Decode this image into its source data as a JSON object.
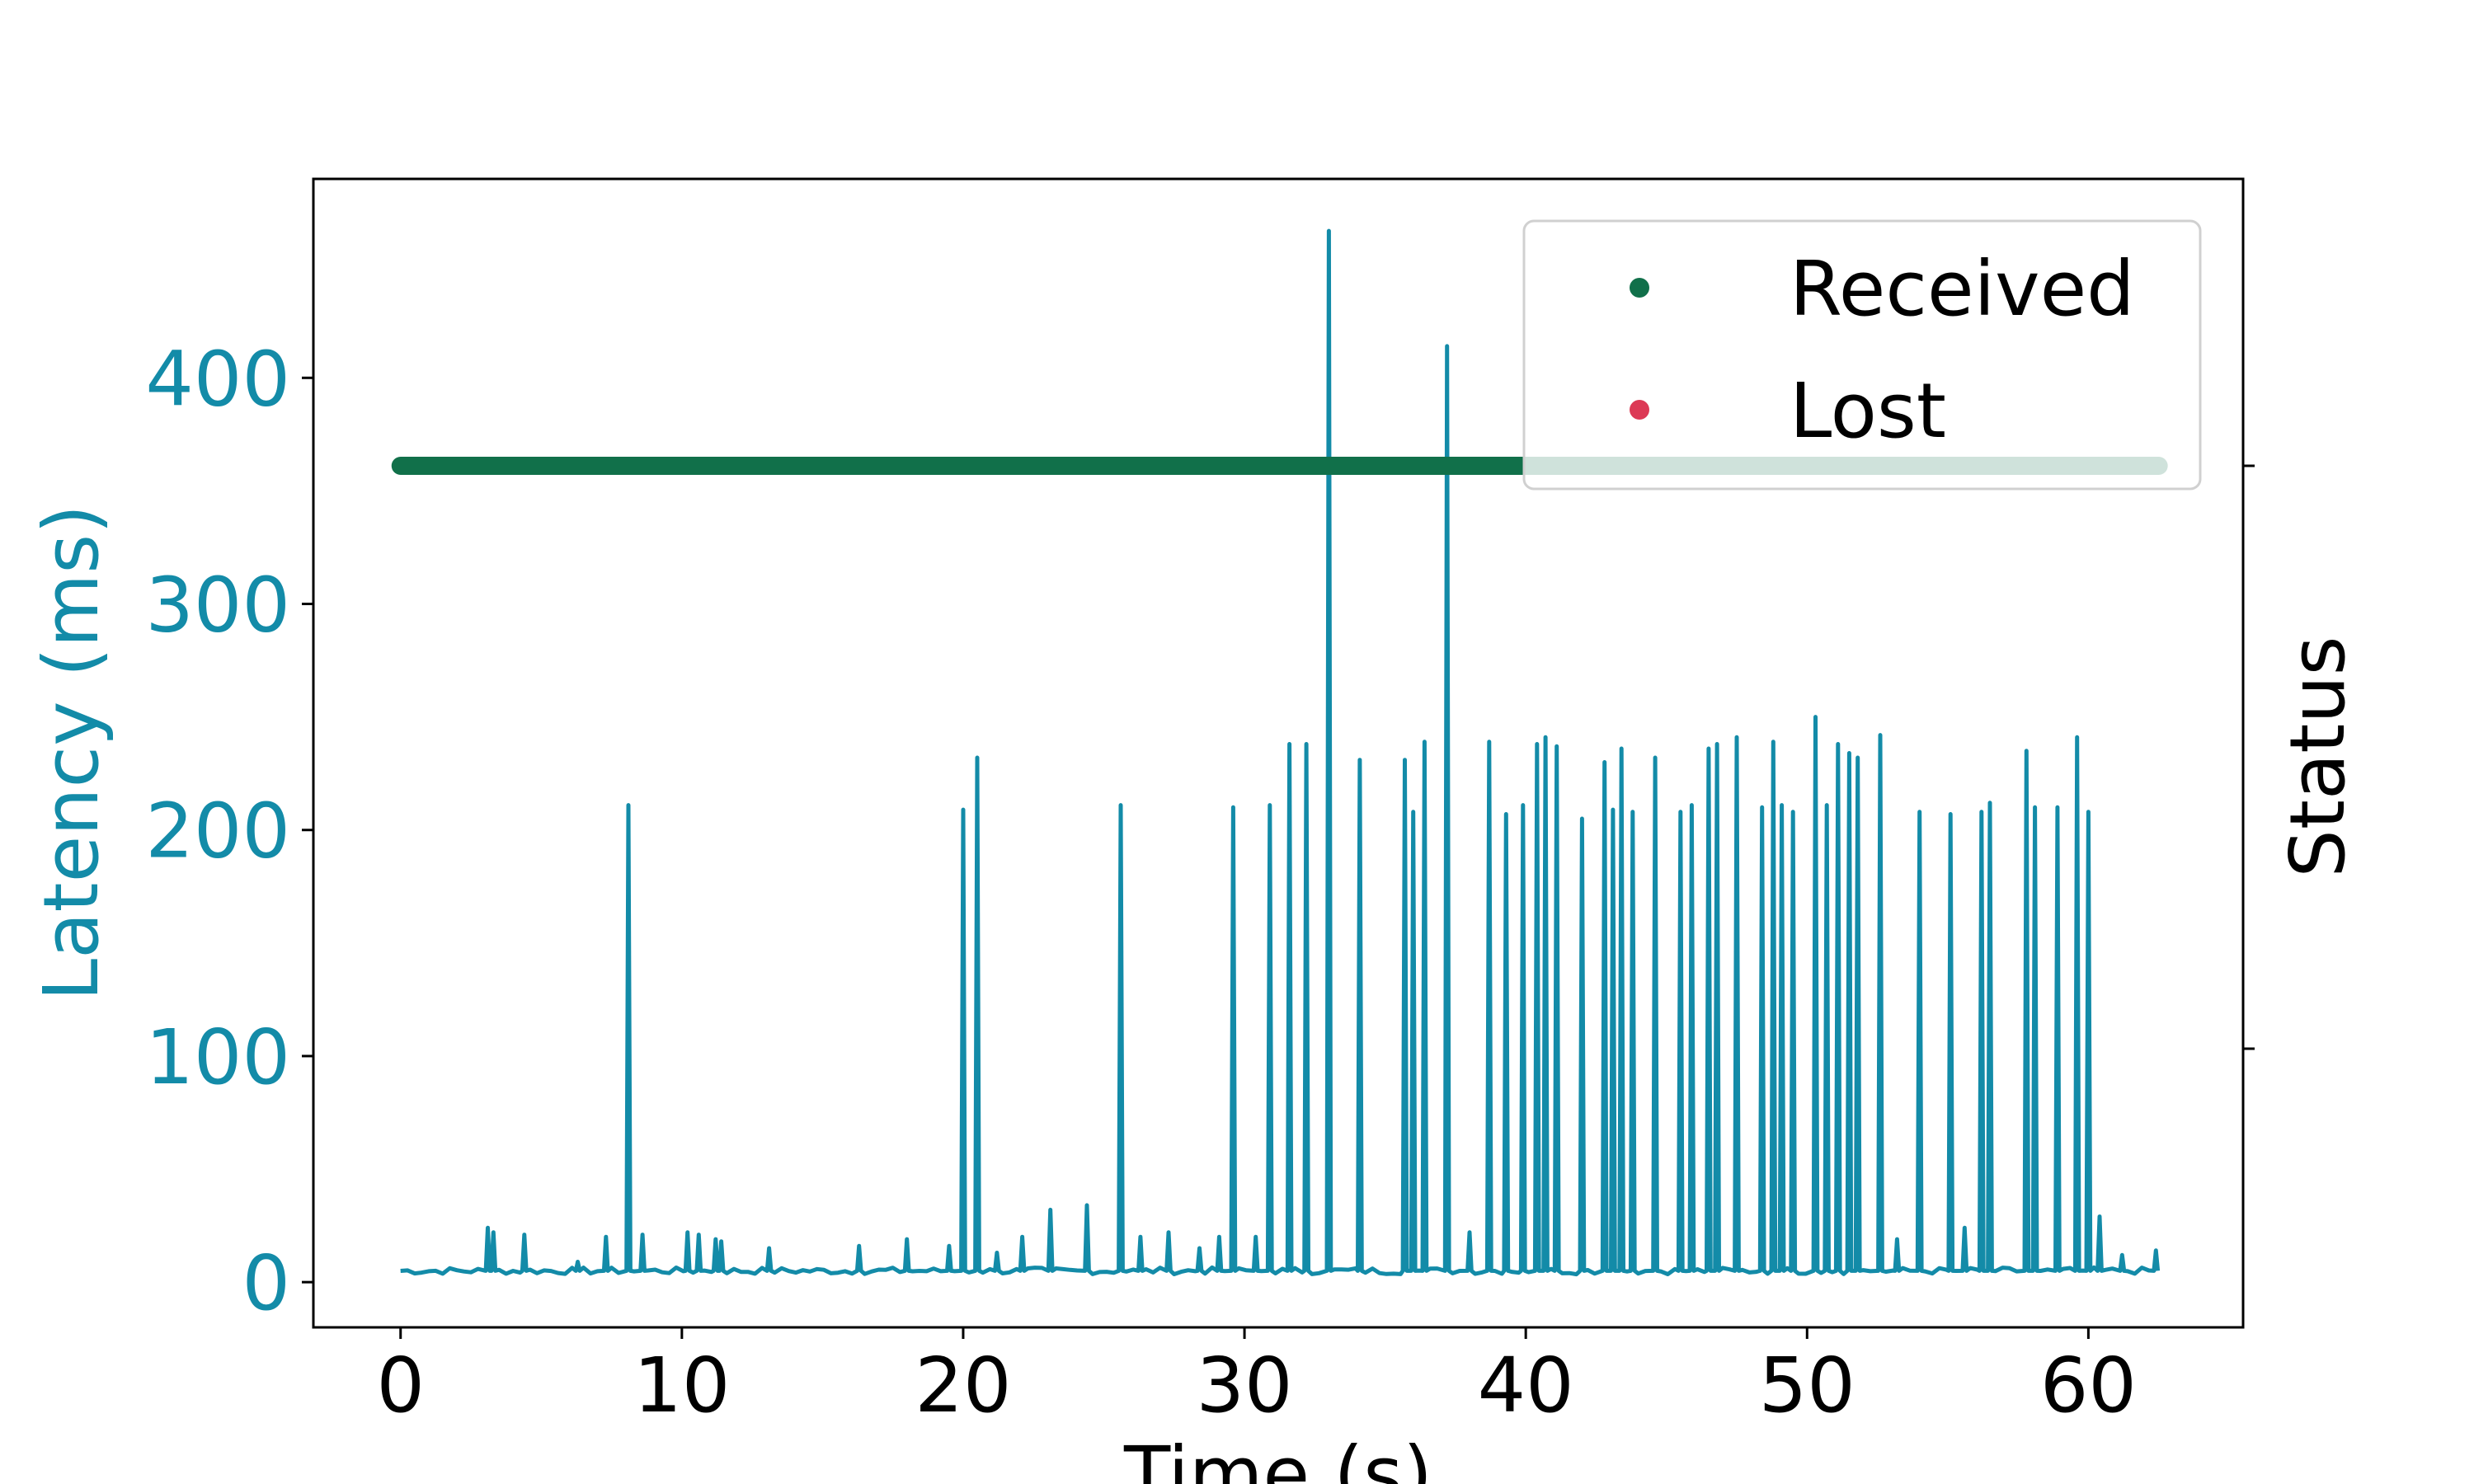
{
  "chart_data": {
    "type": "line",
    "title": "",
    "xlabel": "Time (s)",
    "ylabel": "Latency (ms)",
    "y2label": "Status",
    "xlim": [
      -3.1,
      65.5
    ],
    "ylim": [
      -20,
      488
    ],
    "x_ticks": [
      0,
      10,
      20,
      30,
      40,
      50,
      60
    ],
    "y_ticks": [
      0,
      100,
      200,
      300,
      400
    ],
    "grid": false,
    "legend_placement": "top-right",
    "colors": {
      "latency": "#138ba8",
      "received": "#11704a",
      "lost": "#dc3955",
      "axis": "#000000"
    },
    "series": [
      {
        "name": "Latency",
        "kind": "line",
        "baseline": 5,
        "x_range": [
          0,
          62.5
        ],
        "spikes": [
          [
            3.1,
            24
          ],
          [
            3.3,
            22
          ],
          [
            4.4,
            21
          ],
          [
            6.3,
            9
          ],
          [
            7.3,
            20
          ],
          [
            8.1,
            211
          ],
          [
            8.6,
            21
          ],
          [
            10.2,
            22
          ],
          [
            10.6,
            21
          ],
          [
            11.2,
            19
          ],
          [
            11.4,
            18
          ],
          [
            13.1,
            15
          ],
          [
            16.3,
            16
          ],
          [
            18.0,
            19
          ],
          [
            19.5,
            16
          ],
          [
            20.0,
            209
          ],
          [
            20.5,
            232
          ],
          [
            21.2,
            13
          ],
          [
            22.1,
            20
          ],
          [
            23.1,
            32
          ],
          [
            24.4,
            34
          ],
          [
            25.6,
            211
          ],
          [
            26.3,
            20
          ],
          [
            27.3,
            22
          ],
          [
            28.4,
            15
          ],
          [
            29.1,
            20
          ],
          [
            29.6,
            210
          ],
          [
            30.4,
            20
          ],
          [
            30.9,
            211
          ],
          [
            31.6,
            238
          ],
          [
            32.2,
            238
          ],
          [
            33.0,
            465
          ],
          [
            34.1,
            231
          ],
          [
            35.7,
            231
          ],
          [
            36.0,
            208
          ],
          [
            36.4,
            239
          ],
          [
            37.2,
            414
          ],
          [
            38.0,
            22
          ],
          [
            38.7,
            239
          ],
          [
            39.3,
            207
          ],
          [
            39.9,
            211
          ],
          [
            40.4,
            238
          ],
          [
            40.7,
            241
          ],
          [
            41.1,
            237
          ],
          [
            42.0,
            205
          ],
          [
            42.8,
            230
          ],
          [
            43.1,
            209
          ],
          [
            43.4,
            236
          ],
          [
            43.8,
            208
          ],
          [
            44.6,
            232
          ],
          [
            45.5,
            208
          ],
          [
            45.9,
            211
          ],
          [
            46.5,
            236
          ],
          [
            46.8,
            238
          ],
          [
            47.5,
            241
          ],
          [
            48.4,
            210
          ],
          [
            48.8,
            239
          ],
          [
            49.1,
            211
          ],
          [
            49.5,
            208
          ],
          [
            50.3,
            250
          ],
          [
            50.7,
            211
          ],
          [
            51.1,
            238
          ],
          [
            51.5,
            234
          ],
          [
            51.8,
            232
          ],
          [
            52.6,
            242
          ],
          [
            53.2,
            19
          ],
          [
            54.0,
            208
          ],
          [
            55.1,
            207
          ],
          [
            55.6,
            24
          ],
          [
            56.2,
            208
          ],
          [
            56.5,
            212
          ],
          [
            57.8,
            235
          ],
          [
            58.1,
            210
          ],
          [
            58.9,
            210
          ],
          [
            59.6,
            241
          ],
          [
            60.0,
            208
          ],
          [
            60.4,
            29
          ],
          [
            61.2,
            12
          ],
          [
            62.4,
            14
          ]
        ]
      },
      {
        "name": "Received",
        "kind": "scatter",
        "x_range": [
          0,
          62.5
        ],
        "status_value": 1
      },
      {
        "name": "Lost",
        "kind": "scatter",
        "points": []
      }
    ],
    "legend": {
      "entries": [
        "Received",
        "Lost"
      ]
    }
  }
}
